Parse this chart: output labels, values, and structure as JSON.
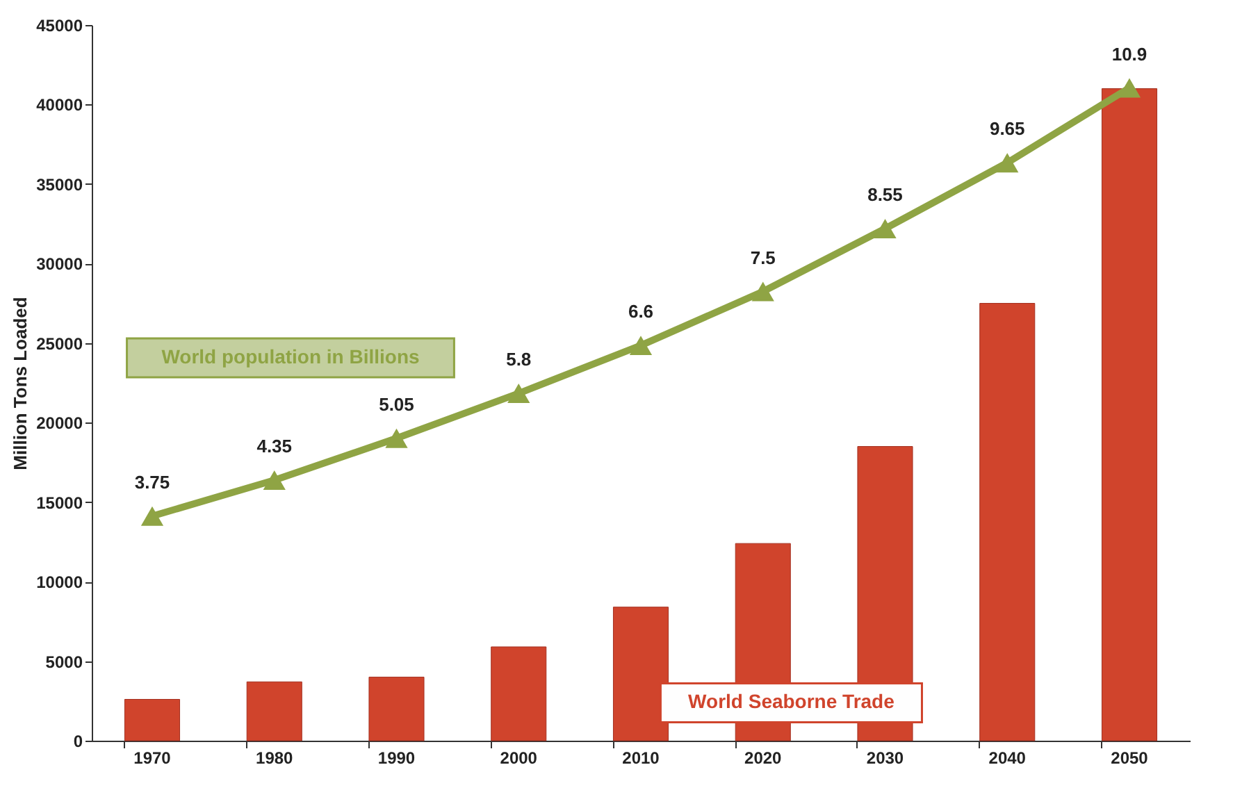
{
  "chart_data": {
    "type": "bar",
    "ylabel": "Million Tons Loaded",
    "categories": [
      "1970",
      "1980",
      "1990",
      "2000",
      "2010",
      "2020",
      "2030",
      "2040",
      "2050"
    ],
    "series": [
      {
        "name": "World Seaborne Trade",
        "color": "#d0442c",
        "values": [
          2600,
          3700,
          4000,
          5900,
          8400,
          12400,
          18500,
          27500,
          41000
        ]
      },
      {
        "name": "World population in Billions",
        "type": "line",
        "axis": "y2",
        "color": "#8fa444",
        "marker": "triangle",
        "values": [
          3.75,
          4.35,
          5.05,
          5.8,
          6.6,
          7.5,
          8.55,
          9.65,
          10.9
        ],
        "value_labels": [
          "3.75",
          "4.35",
          "5.05",
          "5.8",
          "6.6",
          "7.5",
          "8.55",
          "9.65",
          "10.9"
        ]
      }
    ],
    "ylim": [
      0,
      45000
    ],
    "yticks": [
      0,
      5000,
      10000,
      15000,
      20000,
      25000,
      30000,
      35000,
      40000,
      45000
    ],
    "y2lim": [
      0,
      11.95
    ],
    "tick_labels": "xy",
    "grid": false
  }
}
